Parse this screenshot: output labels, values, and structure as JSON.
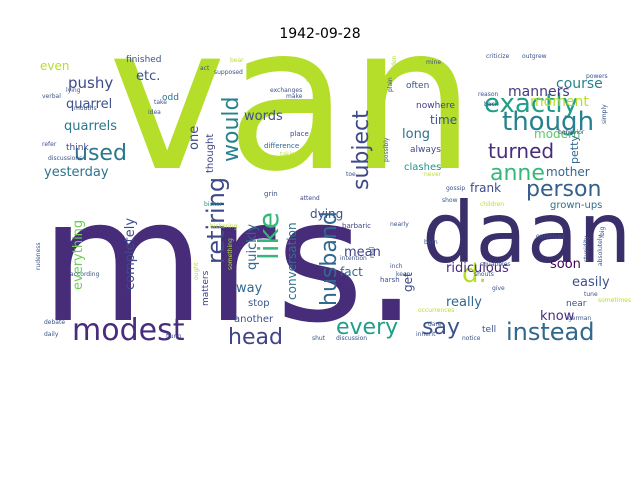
{
  "title": "1942-09-28",
  "palette": {
    "dark_purple": "#472c7a",
    "deep_purple": "#3b2f6b",
    "indigo": "#414487",
    "blue": "#355f8d",
    "teal_blue": "#2c728e",
    "teal": "#21918c",
    "green_teal": "#28ae80",
    "green": "#5ec962",
    "lime": "#addc30",
    "yellow_green": "#c2df23",
    "yellow": "#d8e219"
  },
  "words": [
    {
      "text": "van",
      "color": "#b5de2b"
    },
    {
      "text": "mrs.",
      "color": "#472c7a"
    },
    {
      "text": "daan",
      "color": "#3b2f6b"
    },
    {
      "text": "modest",
      "color": "#472d7b"
    },
    {
      "text": "exactly",
      "color": "#1f9e89"
    },
    {
      "text": "though",
      "color": "#26828e"
    },
    {
      "text": "person",
      "color": "#355f8d"
    },
    {
      "text": "anne",
      "color": "#35b779"
    },
    {
      "text": "d.",
      "color": "#b5de2b"
    },
    {
      "text": "instead",
      "color": "#31688e"
    },
    {
      "text": "every",
      "color": "#1f9e89"
    },
    {
      "text": "say",
      "color": "#3b528b"
    },
    {
      "text": "head",
      "color": "#414487"
    },
    {
      "text": "husband",
      "color": "#31688e"
    },
    {
      "text": "subject",
      "color": "#3e4a89"
    },
    {
      "text": "like",
      "color": "#35b779"
    },
    {
      "text": "retiring",
      "color": "#3e4a89"
    },
    {
      "text": "would",
      "color": "#26828e"
    },
    {
      "text": "used",
      "color": "#2a788e"
    },
    {
      "text": "turned",
      "color": "#472d7b"
    },
    {
      "text": "course",
      "color": "#26828e"
    },
    {
      "text": "moment",
      "color": "#b5de2b"
    },
    {
      "text": "manners",
      "color": "#443983"
    },
    {
      "text": "quarrel",
      "color": "#3b528b"
    },
    {
      "text": "quarrels",
      "color": "#2a788e"
    },
    {
      "text": "pushy",
      "color": "#3e4a89"
    },
    {
      "text": "even",
      "color": "#b5de2b"
    },
    {
      "text": "etc.",
      "color": "#3b528b"
    },
    {
      "text": "yesterday",
      "color": "#2c728e"
    },
    {
      "text": "everything",
      "color": "#6ece58"
    },
    {
      "text": "completely",
      "color": "#3e4a89"
    },
    {
      "text": "quickly",
      "color": "#31688e"
    },
    {
      "text": "words",
      "color": "#3b528b"
    },
    {
      "text": "one",
      "color": "#3e4a89"
    },
    {
      "text": "thought",
      "color": "#414487"
    },
    {
      "text": "conversation",
      "color": "#2c728e"
    },
    {
      "text": "dying",
      "color": "#3b528b"
    },
    {
      "text": "mean",
      "color": "#414487"
    },
    {
      "text": "fact",
      "color": "#31688e"
    },
    {
      "text": "get",
      "color": "#3e4a89"
    },
    {
      "text": "ridiculous",
      "color": "#482878"
    },
    {
      "text": "soon",
      "color": "#440154"
    },
    {
      "text": "easily",
      "color": "#3b528b"
    },
    {
      "text": "really",
      "color": "#31688e"
    },
    {
      "text": "know",
      "color": "#472d7b"
    },
    {
      "text": "frank",
      "color": "#3e4a89"
    },
    {
      "text": "mother",
      "color": "#31688e"
    },
    {
      "text": "long",
      "color": "#2c728e"
    },
    {
      "text": "time",
      "color": "#3b528b"
    },
    {
      "text": "modern",
      "color": "#5ec962"
    },
    {
      "text": "petty",
      "color": "#31688e"
    },
    {
      "text": "grown-ups",
      "color": "#2c728e"
    },
    {
      "text": "clashes",
      "color": "#21918c"
    },
    {
      "text": "always",
      "color": "#3e4a89"
    },
    {
      "text": "nowhere",
      "color": "#433e85"
    },
    {
      "text": "often",
      "color": "#3b528b"
    },
    {
      "text": "way",
      "color": "#31688e"
    },
    {
      "text": "stop",
      "color": "#3b528b"
    },
    {
      "text": "another",
      "color": "#3b528b"
    },
    {
      "text": "matters",
      "color": "#414487"
    },
    {
      "text": "finished",
      "color": "#3b528b"
    },
    {
      "text": "odd",
      "color": "#2c728e"
    },
    {
      "text": "think",
      "color": "#3e4a89"
    },
    {
      "text": "tell",
      "color": "#3b528b"
    },
    {
      "text": "near",
      "color": "#3b528b"
    },
    {
      "text": "place",
      "color": "#3b528b"
    },
    {
      "text": "difference",
      "color": "#31688e"
    },
    {
      "text": "taking",
      "color": "#c2df23"
    },
    {
      "text": "attend",
      "color": "#3e4a89"
    },
    {
      "text": "grin",
      "color": "#3b528b"
    },
    {
      "text": "bicker",
      "color": "#21918c"
    },
    {
      "text": "barbaric",
      "color": "#414487"
    },
    {
      "text": "nearly",
      "color": "#3b528b"
    },
    {
      "text": "children",
      "color": "#b5de2b"
    },
    {
      "text": "gossip",
      "color": "#3b528b"
    },
    {
      "text": "show",
      "color": "#3b528b"
    },
    {
      "text": "toe",
      "color": "#3b528b"
    },
    {
      "text": "never",
      "color": "#b5de2b"
    },
    {
      "text": "intention",
      "color": "#3b528b"
    },
    {
      "text": "harsh",
      "color": "#3b528b"
    },
    {
      "text": "keep",
      "color": "#3b528b"
    },
    {
      "text": "shouts",
      "color": "#3b528b"
    },
    {
      "text": "give",
      "color": "#3b528b"
    },
    {
      "text": "squabbles",
      "color": "#3b528b"
    },
    {
      "text": "occurrences",
      "color": "#b5de2b"
    },
    {
      "text": "shut",
      "color": "#3b528b"
    },
    {
      "text": "discussion",
      "color": "#3b528b"
    },
    {
      "text": "inherit",
      "color": "#3b528b"
    },
    {
      "text": "notice",
      "color": "#3b528b"
    },
    {
      "text": "sometimes",
      "color": "#b5de2b"
    },
    {
      "text": "tune",
      "color": "#3b528b"
    },
    {
      "text": "behavior",
      "color": "#3b528b"
    },
    {
      "text": "criticize",
      "color": "#3b528b"
    },
    {
      "text": "outgrew",
      "color": "#3b528b"
    },
    {
      "text": "powers",
      "color": "#3b528b"
    },
    {
      "text": "simply",
      "color": "#3b528b"
    },
    {
      "text": "mine",
      "color": "#3b528b"
    },
    {
      "text": "reason",
      "color": "#3b528b"
    },
    {
      "text": "back",
      "color": "#3b528b"
    },
    {
      "text": "exchanges",
      "color": "#3b528b"
    },
    {
      "text": "make",
      "color": "#3b528b"
    },
    {
      "text": "supposed",
      "color": "#3b528b"
    },
    {
      "text": "bear",
      "color": "#b5de2b"
    },
    {
      "text": "act",
      "color": "#3b528b"
    },
    {
      "text": "idea",
      "color": "#3b528b"
    },
    {
      "text": "take",
      "color": "#3b528b"
    },
    {
      "text": "lying",
      "color": "#3b528b"
    },
    {
      "text": "verbal",
      "color": "#3b528b"
    },
    {
      "text": "mouths",
      "color": "#3b528b"
    },
    {
      "text": "discussions",
      "color": "#3b528b"
    },
    {
      "text": "refer",
      "color": "#3b528b"
    },
    {
      "text": "according",
      "color": "#3b528b"
    },
    {
      "text": "debate",
      "color": "#3b528b"
    },
    {
      "text": "daily",
      "color": "#3b528b"
    },
    {
      "text": "rudeness",
      "color": "#3b528b"
    },
    {
      "text": "ought",
      "color": "#b5de2b"
    },
    {
      "text": "flung",
      "color": "#3b528b"
    },
    {
      "text": "something",
      "color": "#b5de2b"
    },
    {
      "text": "real",
      "color": "#3b528b"
    },
    {
      "text": "inch",
      "color": "#3b528b"
    },
    {
      "text": "dare",
      "color": "#3b528b"
    },
    {
      "text": "big",
      "color": "#3b528b"
    },
    {
      "text": "absolutely",
      "color": "#3b528b"
    },
    {
      "text": "stupidity",
      "color": "#3b528b"
    },
    {
      "text": "possibly",
      "color": "#3b528b"
    },
    {
      "text": "plain",
      "color": "#3b528b"
    },
    {
      "text": "golden",
      "color": "#b5de2b"
    },
    {
      "text": "sit",
      "color": "#b5de2b"
    },
    {
      "text": "bickering",
      "color": "#b5de2b"
    },
    {
      "text": "ourselves",
      "color": "#3b528b"
    },
    {
      "text": "german",
      "color": "#3b528b"
    },
    {
      "text": "born",
      "color": "#3b528b"
    }
  ]
}
